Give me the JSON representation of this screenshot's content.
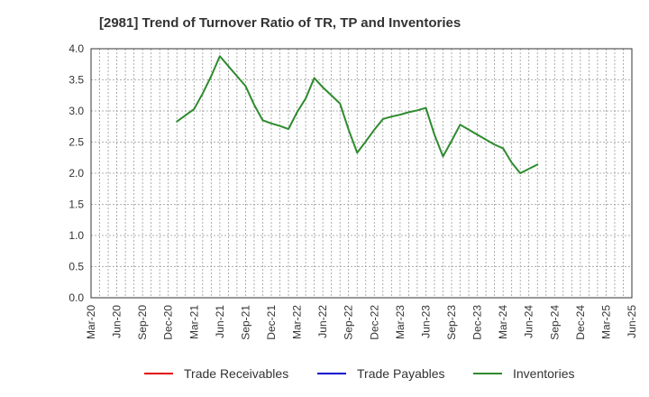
{
  "chart_data": {
    "type": "line",
    "title": "[2981]  Trend of Turnover Ratio of TR, TP and Inventories",
    "xlabel": "",
    "ylabel": "",
    "ylim": [
      0,
      4.0
    ],
    "y_ticks": [
      "0.0",
      "0.5",
      "1.0",
      "1.5",
      "2.0",
      "2.5",
      "3.0",
      "3.5",
      "4.0"
    ],
    "x_ticks": [
      "Mar-20",
      "Jun-20",
      "Sep-20",
      "Dec-20",
      "Mar-21",
      "Jun-21",
      "Sep-21",
      "Dec-21",
      "Mar-22",
      "Jun-22",
      "Sep-22",
      "Dec-22",
      "Mar-23",
      "Jun-23",
      "Sep-23",
      "Dec-23",
      "Mar-24",
      "Jun-24",
      "Sep-24",
      "Dec-24",
      "Mar-25",
      "Jun-25"
    ],
    "grid": true,
    "legend_position": "bottom",
    "series": [
      {
        "name": "Trade Receivables",
        "color": "#e00000",
        "values": []
      },
      {
        "name": "Trade Payables",
        "color": "#0000cc",
        "values": []
      },
      {
        "name": "Inventories",
        "color": "#2e8b2e",
        "values": [
          {
            "x": "Jan-21",
            "y": 2.83
          },
          {
            "x": "Feb-21",
            "y": 2.93
          },
          {
            "x": "Mar-21",
            "y": 3.03
          },
          {
            "x": "Apr-21",
            "y": 3.28
          },
          {
            "x": "May-21",
            "y": 3.56
          },
          {
            "x": "Jun-21",
            "y": 3.88
          },
          {
            "x": "Jul-21",
            "y": 3.72
          },
          {
            "x": "Aug-21",
            "y": 3.56
          },
          {
            "x": "Sep-21",
            "y": 3.4
          },
          {
            "x": "Oct-21",
            "y": 3.1
          },
          {
            "x": "Nov-21",
            "y": 2.85
          },
          {
            "x": "Dec-21",
            "y": 2.8
          },
          {
            "x": "Jan-22",
            "y": 2.76
          },
          {
            "x": "Feb-22",
            "y": 2.71
          },
          {
            "x": "Mar-22",
            "y": 2.98
          },
          {
            "x": "Apr-22",
            "y": 3.2
          },
          {
            "x": "May-22",
            "y": 3.53
          },
          {
            "x": "Jun-22",
            "y": 3.38
          },
          {
            "x": "Jul-22",
            "y": 3.25
          },
          {
            "x": "Aug-22",
            "y": 3.12
          },
          {
            "x": "Sep-22",
            "y": 2.7
          },
          {
            "x": "Oct-22",
            "y": 2.33
          },
          {
            "x": "Nov-22",
            "y": 2.51
          },
          {
            "x": "Dec-22",
            "y": 2.7
          },
          {
            "x": "Jan-23",
            "y": 2.87
          },
          {
            "x": "Feb-23",
            "y": 2.91
          },
          {
            "x": "Mar-23",
            "y": 2.94
          },
          {
            "x": "Apr-23",
            "y": 2.98
          },
          {
            "x": "May-23",
            "y": 3.01
          },
          {
            "x": "Jun-23",
            "y": 3.05
          },
          {
            "x": "Jul-23",
            "y": 2.62
          },
          {
            "x": "Aug-23",
            "y": 2.27
          },
          {
            "x": "Sep-23",
            "y": 2.52
          },
          {
            "x": "Oct-23",
            "y": 2.78
          },
          {
            "x": "Nov-23",
            "y": 2.7
          },
          {
            "x": "Dec-23",
            "y": 2.62
          },
          {
            "x": "Jan-24",
            "y": 2.54
          },
          {
            "x": "Feb-24",
            "y": 2.46
          },
          {
            "x": "Mar-24",
            "y": 2.4
          },
          {
            "x": "Apr-24",
            "y": 2.17
          },
          {
            "x": "May-24",
            "y": 2.0
          },
          {
            "x": "Jun-24",
            "y": 2.07
          },
          {
            "x": "Jul-24",
            "y": 2.14
          }
        ]
      }
    ]
  }
}
